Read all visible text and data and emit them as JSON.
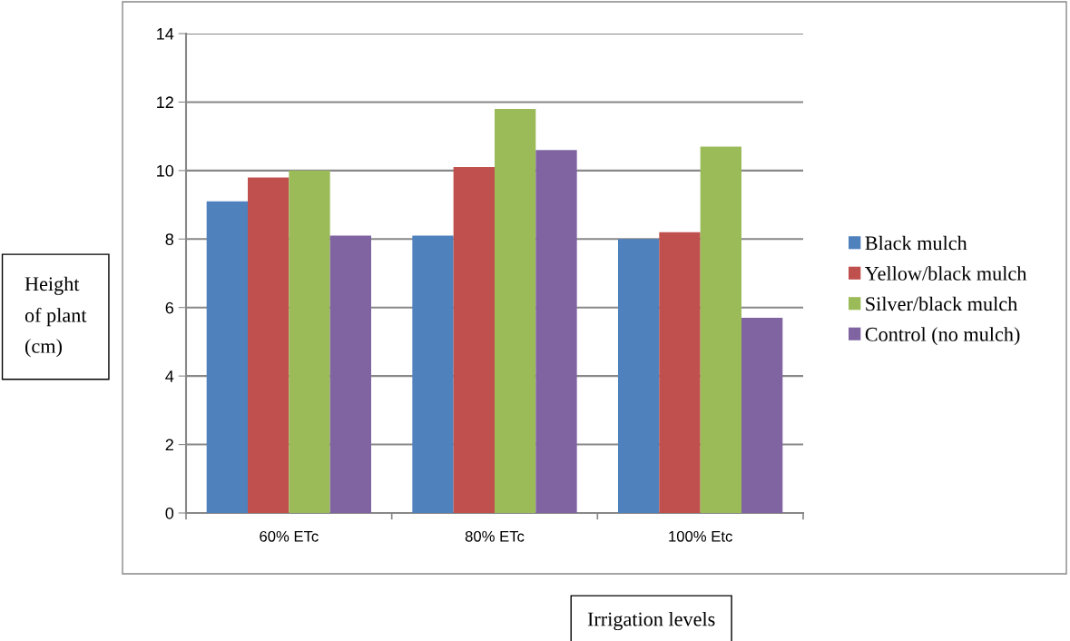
{
  "chart_data": {
    "type": "bar",
    "xlabel": "Irrigation levels",
    "ylabel": "Height\nof plant\n(cm)",
    "categories": [
      "60% ETc",
      "80% ETc",
      "100% Etc"
    ],
    "series": [
      {
        "name": "Black mulch",
        "color": "#4f81bd",
        "values": [
          9.1,
          8.1,
          8.0
        ]
      },
      {
        "name": "Yellow/black mulch",
        "color": "#c0504d",
        "values": [
          9.8,
          10.1,
          8.2
        ]
      },
      {
        "name": "Silver/black mulch",
        "color": "#9bbb59",
        "values": [
          10.0,
          11.8,
          10.7
        ]
      },
      {
        "name": "Control (no mulch)",
        "color": "#8064a2",
        "values": [
          8.1,
          10.6,
          5.7
        ]
      }
    ],
    "ylim": [
      0,
      14
    ],
    "yticks": [
      0,
      2,
      4,
      6,
      8,
      10,
      12,
      14
    ],
    "grid": "y",
    "legend": "right"
  }
}
